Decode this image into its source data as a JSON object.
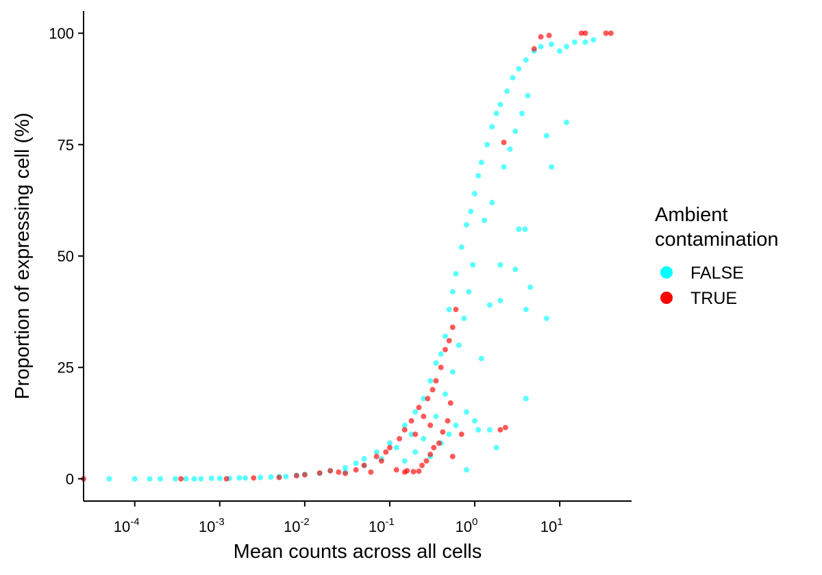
{
  "chart_data": {
    "type": "scatter",
    "title": "",
    "xlabel": "Mean counts across all cells",
    "ylabel": "Proportion of expressing cell (%)",
    "x_scale": "log10",
    "xlim": [
      2.5e-05,
      70
    ],
    "ylim": [
      -5,
      105
    ],
    "x_ticks": [
      {
        "value": 0.0001,
        "base": "10",
        "exp": "-4"
      },
      {
        "value": 0.001,
        "base": "10",
        "exp": "-3"
      },
      {
        "value": 0.01,
        "base": "10",
        "exp": "-2"
      },
      {
        "value": 0.1,
        "base": "10",
        "exp": "-1"
      },
      {
        "value": 1,
        "base": "10",
        "exp": "0"
      },
      {
        "value": 10,
        "base": "10",
        "exp": "1"
      }
    ],
    "y_ticks": [
      0,
      25,
      50,
      75,
      100
    ],
    "y_tick_labels": [
      "0",
      "25",
      "50",
      "75",
      "100"
    ],
    "grid": false,
    "legend": {
      "title_line1": "Ambient",
      "title_line2": "contamination",
      "placement": "right"
    },
    "series": [
      {
        "name": "FALSE",
        "color": "#00FFFF",
        "point_opacity": 0.65,
        "points": [
          [
            5e-05,
            0
          ],
          [
            0.0001,
            0
          ],
          [
            0.00015,
            0
          ],
          [
            0.0002,
            0
          ],
          [
            0.0003,
            0
          ],
          [
            0.0004,
            0
          ],
          [
            0.0005,
            0
          ],
          [
            0.0006,
            0
          ],
          [
            0.0008,
            0.1
          ],
          [
            0.001,
            0.1
          ],
          [
            0.0013,
            0.1
          ],
          [
            0.0017,
            0.2
          ],
          [
            0.002,
            0.2
          ],
          [
            0.003,
            0.3
          ],
          [
            0.004,
            0.4
          ],
          [
            0.005,
            0.5
          ],
          [
            0.006,
            0.5
          ],
          [
            0.008,
            0.8
          ],
          [
            0.01,
            1.0
          ],
          [
            0.015,
            1.2
          ],
          [
            0.02,
            1.8
          ],
          [
            0.03,
            2.5
          ],
          [
            0.04,
            3.5
          ],
          [
            0.05,
            4.5
          ],
          [
            0.07,
            6
          ],
          [
            0.1,
            8
          ],
          [
            0.15,
            12
          ],
          [
            0.2,
            15
          ],
          [
            0.25,
            18
          ],
          [
            0.3,
            22
          ],
          [
            0.35,
            26
          ],
          [
            0.4,
            28
          ],
          [
            0.45,
            32
          ],
          [
            0.5,
            38
          ],
          [
            0.55,
            42
          ],
          [
            0.6,
            46
          ],
          [
            0.7,
            52
          ],
          [
            0.8,
            57
          ],
          [
            0.9,
            60
          ],
          [
            1.0,
            64
          ],
          [
            1.1,
            68
          ],
          [
            1.2,
            71
          ],
          [
            1.4,
            75
          ],
          [
            1.6,
            79
          ],
          [
            1.8,
            82
          ],
          [
            2.0,
            84
          ],
          [
            2.4,
            87
          ],
          [
            2.8,
            90
          ],
          [
            3.3,
            92
          ],
          [
            4.0,
            94
          ],
          [
            5.0,
            96
          ],
          [
            6.0,
            97
          ],
          [
            8.0,
            97.5
          ],
          [
            10.0,
            96
          ],
          [
            12.0,
            97
          ],
          [
            15.0,
            98
          ],
          [
            20.0,
            98
          ],
          [
            25.0,
            98.5
          ],
          [
            0.3,
            5
          ],
          [
            0.4,
            8
          ],
          [
            0.5,
            10
          ],
          [
            0.6,
            12
          ],
          [
            0.8,
            15
          ],
          [
            1.2,
            27
          ],
          [
            1.5,
            39
          ],
          [
            2.0,
            40
          ],
          [
            2.0,
            48
          ],
          [
            3.0,
            47
          ],
          [
            3.3,
            56
          ],
          [
            3.9,
            56
          ],
          [
            4.0,
            38
          ],
          [
            4.5,
            43
          ],
          [
            7.0,
            36
          ],
          [
            7.0,
            77
          ],
          [
            8.0,
            70
          ],
          [
            12.0,
            80
          ],
          [
            4.0,
            18
          ],
          [
            1.0,
            13
          ],
          [
            1.1,
            11
          ],
          [
            1.5,
            11
          ],
          [
            1.8,
            7
          ],
          [
            0.8,
            2
          ],
          [
            0.15,
            4
          ],
          [
            0.2,
            6
          ],
          [
            0.25,
            9
          ],
          [
            0.35,
            14
          ],
          [
            0.45,
            19
          ],
          [
            0.55,
            24
          ],
          [
            0.65,
            30
          ],
          [
            0.75,
            36
          ],
          [
            0.85,
            42
          ],
          [
            0.95,
            48
          ],
          [
            1.3,
            58
          ],
          [
            1.6,
            62
          ],
          [
            2.2,
            70
          ],
          [
            2.6,
            74
          ],
          [
            3.0,
            78
          ],
          [
            3.6,
            82
          ],
          [
            4.2,
            86
          ],
          [
            0.03,
            1.5
          ],
          [
            0.05,
            3
          ],
          [
            0.08,
            4.5
          ],
          [
            0.12,
            7
          ],
          [
            0.18,
            10
          ]
        ]
      },
      {
        "name": "TRUE",
        "color": "#FF0000",
        "point_opacity": 0.65,
        "points": [
          [
            2.5e-05,
            0
          ],
          [
            0.00035,
            0
          ],
          [
            0.0012,
            0
          ],
          [
            0.0025,
            0.2
          ],
          [
            0.005,
            0.3
          ],
          [
            0.008,
            0.7
          ],
          [
            0.01,
            0.9
          ],
          [
            0.015,
            1.3
          ],
          [
            0.02,
            1.8
          ],
          [
            0.025,
            1.5
          ],
          [
            0.03,
            1.2
          ],
          [
            0.04,
            2.0
          ],
          [
            0.05,
            3
          ],
          [
            0.06,
            1.5
          ],
          [
            0.07,
            5
          ],
          [
            0.08,
            4
          ],
          [
            0.09,
            6
          ],
          [
            0.1,
            7
          ],
          [
            0.12,
            2
          ],
          [
            0.13,
            9
          ],
          [
            0.15,
            1.5
          ],
          [
            0.15,
            11
          ],
          [
            0.18,
            13
          ],
          [
            0.2,
            10
          ],
          [
            0.22,
            16
          ],
          [
            0.25,
            14
          ],
          [
            0.28,
            18
          ],
          [
            0.3,
            12
          ],
          [
            0.32,
            20
          ],
          [
            0.35,
            22
          ],
          [
            0.4,
            25
          ],
          [
            0.45,
            29
          ],
          [
            0.5,
            31
          ],
          [
            0.55,
            34
          ],
          [
            0.6,
            38
          ],
          [
            0.55,
            5
          ],
          [
            0.7,
            10
          ],
          [
            2.0,
            11
          ],
          [
            2.3,
            11.5
          ],
          [
            2.2,
            75.5
          ],
          [
            5.0,
            96.5
          ],
          [
            6.0,
            99.2
          ],
          [
            7.5,
            99.5
          ],
          [
            18.0,
            100
          ],
          [
            20.0,
            100
          ],
          [
            35.0,
            100
          ],
          [
            40.0,
            100
          ],
          [
            0.16,
            1.8
          ],
          [
            0.19,
            1.6
          ],
          [
            0.22,
            1.7
          ],
          [
            0.24,
            3
          ],
          [
            0.27,
            4
          ],
          [
            0.3,
            5.5
          ],
          [
            0.33,
            7
          ],
          [
            0.38,
            8
          ],
          [
            0.42,
            10.5
          ],
          [
            0.48,
            13
          ],
          [
            0.52,
            17
          ]
        ]
      }
    ]
  }
}
